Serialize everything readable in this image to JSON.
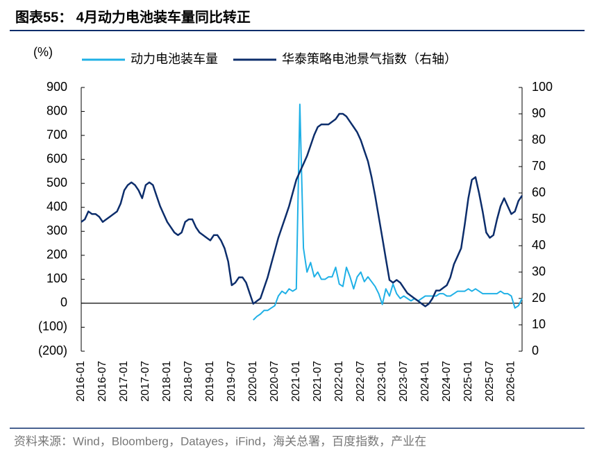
{
  "chart_data": {
    "type": "line",
    "title": "图表55：  4月动力电池装车量同比转正",
    "y_axis_label": "(%)",
    "source": "资料来源：Wind，Bloomberg，Datayes，iFind，海关总署，百度指数，产业在",
    "categories": [
      "2016-01",
      null,
      null,
      null,
      null,
      null,
      "2016-07",
      null,
      null,
      null,
      null,
      null,
      "2017-01",
      null,
      null,
      null,
      null,
      null,
      "2017-07",
      null,
      null,
      null,
      null,
      null,
      "2018-01",
      null,
      null,
      null,
      null,
      null,
      "2018-07",
      null,
      null,
      null,
      null,
      null,
      "2019-01",
      null,
      null,
      null,
      null,
      null,
      "2019-07",
      null,
      null,
      null,
      null,
      null,
      "2020-01",
      null,
      null,
      null,
      null,
      null,
      "2020-07",
      null,
      null,
      null,
      null,
      null,
      "2021-01",
      null,
      null,
      null,
      null,
      null,
      "2021-07",
      null,
      null,
      null,
      null,
      null,
      "2022-01",
      null,
      null,
      null,
      null,
      null,
      "2022-07",
      null,
      null,
      null,
      null,
      null,
      "2023-01",
      null,
      null,
      null,
      null,
      null,
      "2023-07",
      null,
      null,
      null,
      null,
      null,
      "2024-01",
      null,
      null,
      null,
      null,
      null,
      "2024-07",
      null,
      null,
      null,
      null,
      null,
      "2025-01",
      null,
      null,
      null,
      null,
      null,
      "2025-07",
      null,
      null,
      null,
      null,
      null,
      "2026-01",
      null,
      null,
      null
    ],
    "series": [
      {
        "name": "动力电池装车量",
        "color": "#1fb0e6",
        "axis": "y",
        "values": [
          null,
          null,
          null,
          null,
          null,
          null,
          null,
          null,
          null,
          null,
          null,
          null,
          null,
          null,
          null,
          null,
          null,
          null,
          null,
          null,
          null,
          null,
          null,
          null,
          null,
          null,
          null,
          null,
          null,
          null,
          null,
          null,
          null,
          null,
          null,
          null,
          null,
          null,
          null,
          null,
          null,
          null,
          null,
          null,
          null,
          null,
          null,
          null,
          -70,
          -55,
          -45,
          -30,
          -30,
          -20,
          -10,
          30,
          50,
          40,
          60,
          50,
          60,
          830,
          230,
          130,
          170,
          110,
          130,
          100,
          100,
          110,
          110,
          150,
          80,
          70,
          150,
          110,
          60,
          110,
          130,
          90,
          110,
          90,
          70,
          40,
          -5,
          60,
          30,
          80,
          40,
          20,
          30,
          20,
          10,
          20,
          10,
          20,
          30,
          30,
          30,
          30,
          40,
          40,
          30,
          30,
          40,
          50,
          50,
          50,
          60,
          50,
          60,
          50,
          40,
          40,
          40,
          40,
          40,
          50,
          40,
          40,
          30,
          -20,
          -10,
          20
        ]
      },
      {
        "name": "华泰策略电池景气指数（右轴）",
        "color": "#0c2d6b",
        "axis": "y2",
        "values": [
          49,
          50,
          53,
          52,
          52,
          51,
          49,
          50,
          51,
          52,
          53,
          56,
          61,
          63,
          64,
          63,
          61,
          58,
          63,
          64,
          63,
          59,
          55,
          52,
          49,
          47,
          45,
          44,
          45,
          49,
          50,
          50,
          47,
          45,
          44,
          43,
          42,
          44,
          44,
          42,
          39,
          34,
          25,
          26,
          28,
          28,
          26,
          22,
          18,
          19,
          20,
          24,
          28,
          33,
          38,
          43,
          47,
          51,
          55,
          60,
          65,
          68,
          71,
          74,
          78,
          82,
          85,
          86,
          86,
          86,
          87,
          88,
          90,
          90,
          89,
          87,
          85,
          83,
          80,
          76,
          72,
          66,
          59,
          51,
          43,
          35,
          27,
          26,
          27,
          26,
          24,
          22,
          21,
          20,
          19,
          18,
          17,
          18,
          20,
          23,
          23,
          24,
          25,
          28,
          33,
          36,
          39,
          48,
          58,
          65,
          66,
          60,
          53,
          45,
          43,
          44,
          50,
          55,
          58,
          55,
          52,
          53,
          57,
          59
        ]
      }
    ],
    "ylim": [
      -200,
      900
    ],
    "yticks": [
      {
        "value": -200,
        "label": "(200)"
      },
      {
        "value": -100,
        "label": "(100)"
      },
      0,
      100,
      200,
      300,
      400,
      500,
      600,
      700,
      800,
      900
    ],
    "y2lim": [
      0,
      100
    ],
    "y2ticks": [
      0,
      10,
      20,
      30,
      40,
      50,
      60,
      70,
      80,
      90,
      100
    ],
    "grid": false,
    "legend": "top"
  }
}
